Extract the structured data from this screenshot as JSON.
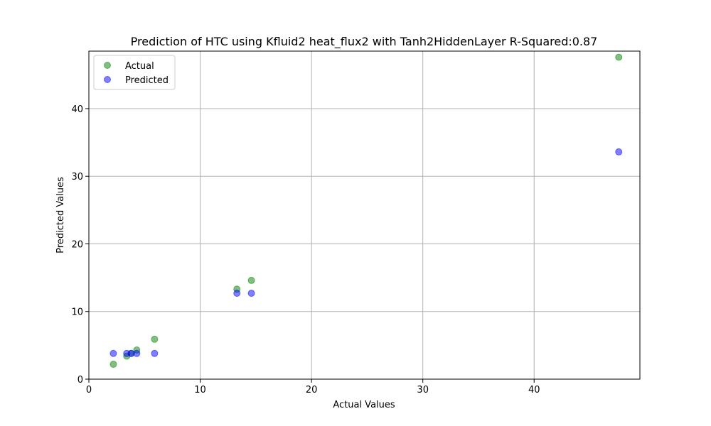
{
  "chart_data": {
    "type": "scatter",
    "title": "Prediction of HTC using Kfluid2 heat_flux2 with Tanh2HiddenLayer  R-Squared:0.87",
    "xlabel": "Actual Values",
    "ylabel": "Predicted Values",
    "xlim": [
      0,
      49.5
    ],
    "ylim": [
      0,
      48.5
    ],
    "xticks": [
      0,
      10,
      20,
      30,
      40
    ],
    "yticks": [
      0,
      10,
      20,
      30,
      40
    ],
    "grid": true,
    "legend_position": "top-left",
    "series": [
      {
        "name": "Actual",
        "color": "#008000",
        "points": [
          [
            2.2,
            2.2
          ],
          [
            3.4,
            3.4
          ],
          [
            3.8,
            3.8
          ],
          [
            4.3,
            4.3
          ],
          [
            5.9,
            5.9
          ],
          [
            13.3,
            13.3
          ],
          [
            14.6,
            14.6
          ],
          [
            47.6,
            47.6
          ]
        ]
      },
      {
        "name": "Predicted",
        "color": "#0000ff",
        "points": [
          [
            2.2,
            3.8
          ],
          [
            3.4,
            3.8
          ],
          [
            3.8,
            3.8
          ],
          [
            4.3,
            3.8
          ],
          [
            5.9,
            3.8
          ],
          [
            13.3,
            12.7
          ],
          [
            14.6,
            12.7
          ],
          [
            47.6,
            33.6
          ]
        ]
      }
    ]
  }
}
